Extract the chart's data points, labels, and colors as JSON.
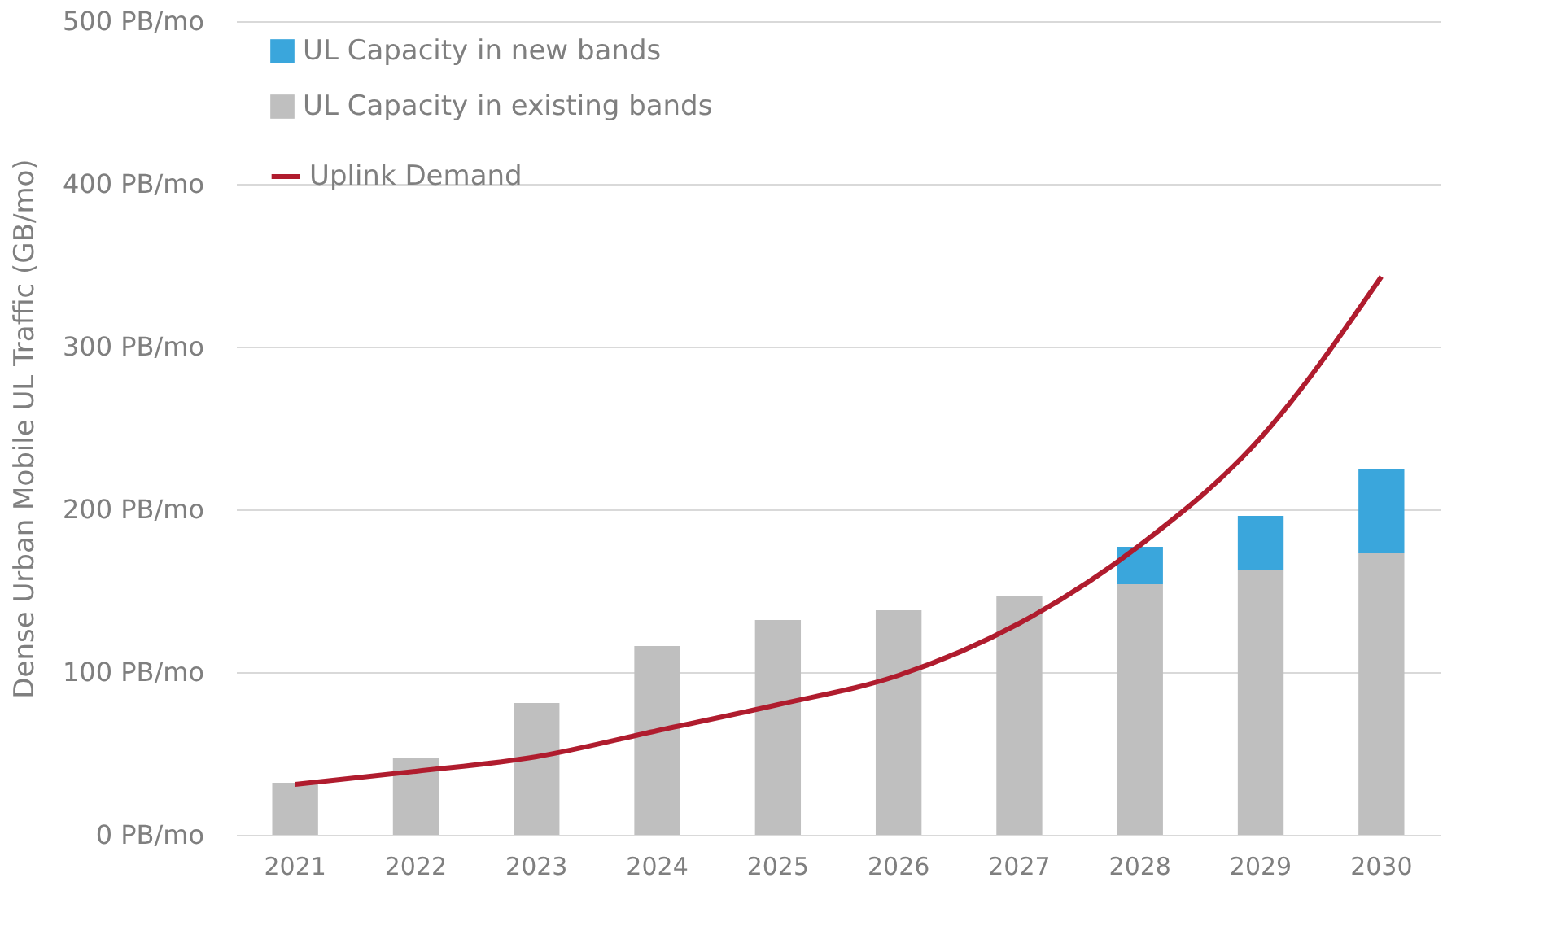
{
  "chart_data": {
    "type": "bar",
    "stacked": true,
    "ylabel": "Dense Urban Mobile UL Traffic (GB/mo)",
    "categories": [
      "2021",
      "2022",
      "2023",
      "2024",
      "2025",
      "2026",
      "2027",
      "2028",
      "2029",
      "2030"
    ],
    "series": [
      {
        "name": "UL Capacity in existing bands",
        "color": "#bfbfbf",
        "values": [
          32,
          47,
          81,
          116,
          132,
          138,
          147,
          154,
          163,
          173
        ]
      },
      {
        "name": "UL Capacity in new bands",
        "color": "#3aa6dc",
        "values": [
          null,
          null,
          null,
          null,
          null,
          null,
          null,
          23,
          33,
          52
        ]
      },
      {
        "name": "Uplink Demand",
        "type": "line",
        "color": "#b01c2e",
        "marker": "none",
        "line_style": "solid",
        "values": [
          31,
          39,
          48,
          64,
          80,
          98,
          130,
          178,
          244,
          343
        ]
      }
    ],
    "ylim": [
      0,
      500
    ],
    "yticks": [
      {
        "value": 0,
        "label": "0 PB/mo"
      },
      {
        "value": 100,
        "label": "100 PB/mo"
      },
      {
        "value": 200,
        "label": "200 PB/mo"
      },
      {
        "value": 300,
        "label": "300 PB/mo"
      },
      {
        "value": 400,
        "label": "400 PB/mo"
      },
      {
        "value": 500,
        "label": "500 PB/mo"
      }
    ],
    "grid": "y",
    "legend": "top left"
  }
}
